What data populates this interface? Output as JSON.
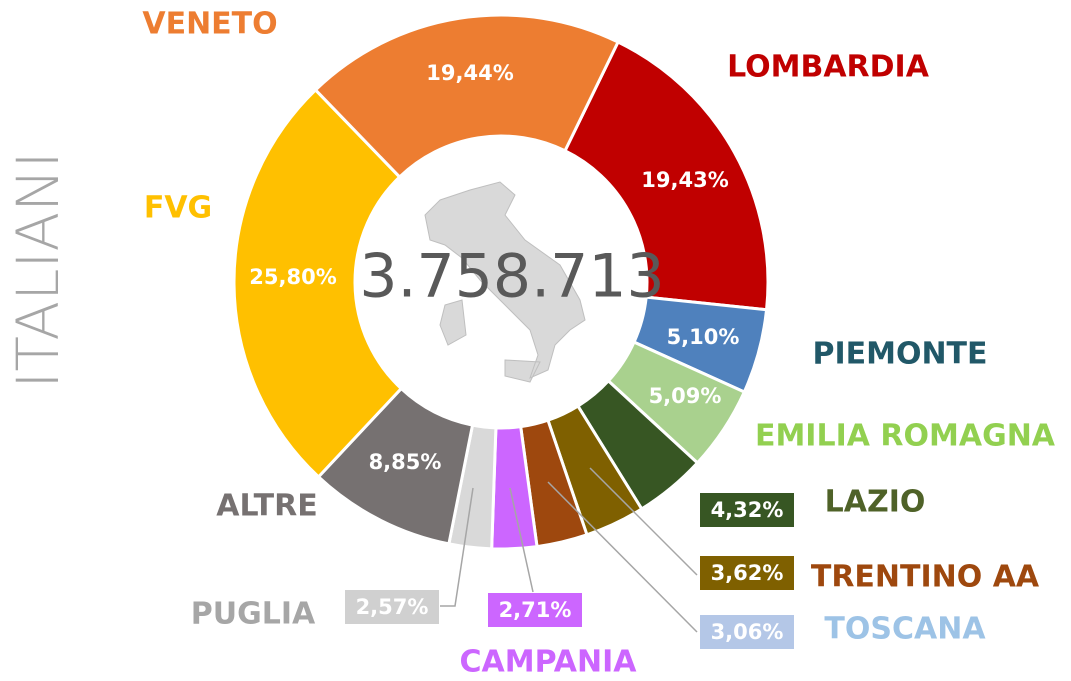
{
  "chart_data": {
    "type": "donut",
    "title": "ITALIANI",
    "center_label": "3.758.713",
    "categories": [
      "LOMBARDIA",
      "PIEMONTE",
      "EMILIA ROMAGNA",
      "LAZIO",
      "TRENTINO AA",
      "TOSCANA",
      "CAMPANIA",
      "PUGLIA",
      "ALTRE",
      "FVG",
      "VENETO"
    ],
    "values": [
      19.43,
      5.1,
      5.09,
      4.32,
      3.62,
      3.06,
      2.71,
      2.57,
      8.85,
      25.8,
      19.44
    ],
    "value_labels": [
      "19,43%",
      "5,10%",
      "5,09%",
      "4,32%",
      "3,62%",
      "3,06%",
      "2,71%",
      "2,57%",
      "8,85%",
      "25,80%",
      "19,44%"
    ],
    "colors": [
      "#c00000",
      "#4f81bd",
      "#a9d18e",
      "#375623",
      "#7f6000",
      "#9e480e",
      "#cc66ff",
      "#d9d9d9",
      "#767171",
      "#ffc000",
      "#ed7d31"
    ],
    "label_colors": [
      "#c00000",
      "#215868",
      "#92d050",
      "#4f6228",
      "#9e480e",
      "#9dc3e6",
      "#cc66ff",
      "#a6a6a6",
      "#767171",
      "#ffc000",
      "#ed7d31"
    ],
    "label_box_colors": [
      null,
      null,
      null,
      "#375623",
      "#7f6000",
      "#b4c7e7",
      "#cc66ff",
      "#d0d0d0",
      null,
      null,
      null
    ]
  }
}
